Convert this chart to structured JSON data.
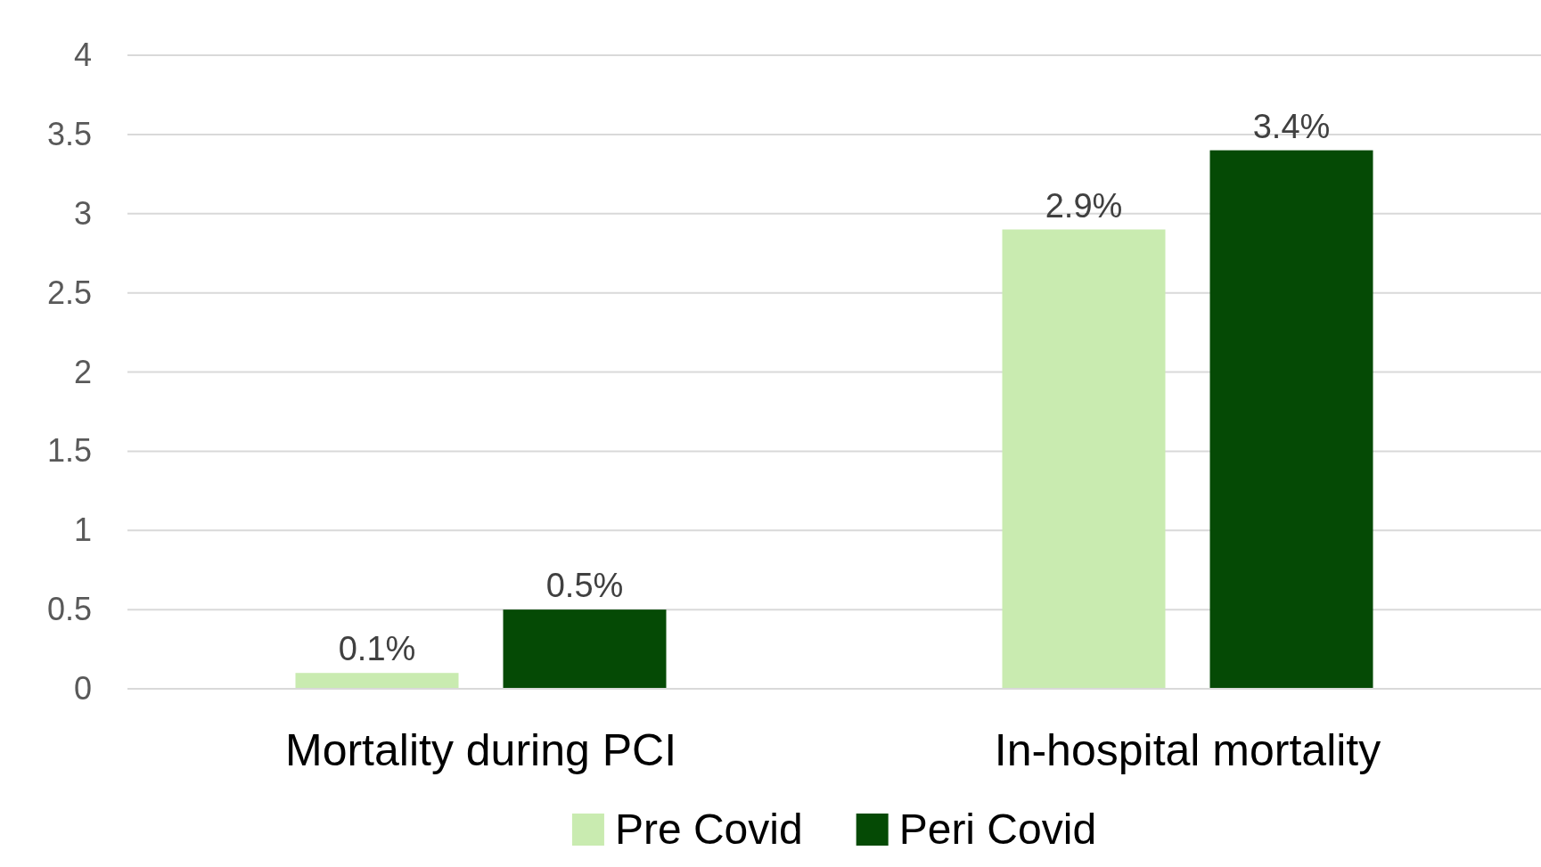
{
  "chart_data": {
    "type": "bar",
    "categories": [
      "Mortality during PCI",
      "In-hospital mortality"
    ],
    "series": [
      {
        "name": "Pre Covid",
        "color": "#c9ebb0",
        "values": [
          0.1,
          2.9
        ],
        "value_labels": [
          "0.1%",
          "2.9%"
        ]
      },
      {
        "name": "Peri Covid",
        "color": "#054a05",
        "values": [
          0.5,
          3.4
        ],
        "value_labels": [
          "0.5%",
          "3.4%"
        ]
      }
    ],
    "ylim": [
      0,
      4
    ],
    "yticks": [
      0,
      0.5,
      1,
      1.5,
      2,
      2.5,
      3,
      3.5,
      4
    ],
    "grid": "y",
    "legend": "bottom"
  }
}
